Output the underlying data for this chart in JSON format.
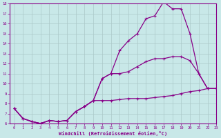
{
  "title": "",
  "xlabel": "Windchill (Refroidissement éolien,°C)",
  "ylabel": "",
  "bg_color": "#c8e8e8",
  "line_color": "#880088",
  "grid_color": "#aac8c8",
  "xlim": [
    -0.5,
    23
  ],
  "ylim": [
    6,
    18
  ],
  "xticks": [
    0,
    1,
    2,
    3,
    4,
    5,
    6,
    7,
    8,
    9,
    10,
    11,
    12,
    13,
    14,
    15,
    16,
    17,
    18,
    19,
    20,
    21,
    22,
    23
  ],
  "yticks": [
    6,
    7,
    8,
    9,
    10,
    11,
    12,
    13,
    14,
    15,
    16,
    17,
    18
  ],
  "line1_x": [
    0,
    1,
    2,
    3,
    4,
    5,
    6,
    7,
    8,
    9,
    10,
    11,
    12,
    13,
    14,
    15,
    16,
    17,
    18,
    19,
    20,
    21,
    22,
    23
  ],
  "line1_y": [
    7.5,
    6.5,
    6.2,
    6.0,
    6.3,
    6.2,
    6.3,
    7.2,
    7.7,
    8.3,
    10.5,
    11.0,
    13.3,
    14.3,
    15.0,
    16.5,
    16.8,
    18.2,
    17.5,
    17.5,
    15.0,
    11.0,
    9.5,
    9.5
  ],
  "line2_x": [
    0,
    1,
    2,
    3,
    4,
    5,
    6,
    7,
    8,
    9,
    10,
    11,
    12,
    13,
    14,
    15,
    16,
    17,
    18,
    19,
    20,
    21,
    22,
    23
  ],
  "line2_y": [
    7.5,
    6.5,
    6.2,
    6.0,
    6.3,
    6.2,
    6.3,
    7.2,
    7.7,
    8.3,
    10.5,
    11.0,
    11.0,
    11.2,
    11.7,
    12.2,
    12.5,
    12.5,
    12.7,
    12.7,
    12.3,
    11.0,
    9.5,
    9.5
  ],
  "line3_x": [
    0,
    1,
    2,
    3,
    4,
    5,
    6,
    7,
    8,
    9,
    10,
    11,
    12,
    13,
    14,
    15,
    16,
    17,
    18,
    19,
    20,
    21,
    22,
    23
  ],
  "line3_y": [
    7.5,
    6.5,
    6.2,
    6.0,
    6.3,
    6.2,
    6.3,
    7.2,
    7.7,
    8.3,
    8.3,
    8.3,
    8.4,
    8.5,
    8.5,
    8.5,
    8.6,
    8.7,
    8.8,
    9.0,
    9.2,
    9.3,
    9.5,
    9.5
  ]
}
